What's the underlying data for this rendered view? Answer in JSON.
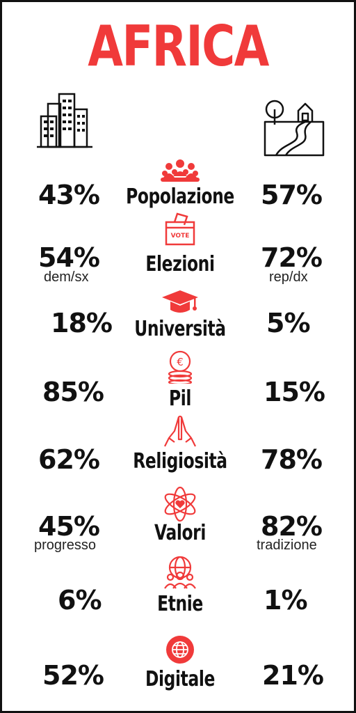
{
  "title": "AFRICA",
  "colors": {
    "accent": "#f03a3a",
    "text": "#111111"
  },
  "left_icon": "city-buildings-icon",
  "right_icon": "countryside-road-icon",
  "rows": [
    {
      "icon": "crowd-icon",
      "label": "Popolazione",
      "left": "43%",
      "right": "57%"
    },
    {
      "icon": "ballot-box-icon",
      "label": "Elezioni",
      "left": "54%",
      "right": "72%",
      "left_sub": "dem/sx",
      "right_sub": "rep/dx"
    },
    {
      "icon": "graduation-cap-icon",
      "label": "Università",
      "left": "18%",
      "right": "5%"
    },
    {
      "icon": "euro-coins-icon",
      "label": "Pil",
      "left": "85%",
      "right": "15%"
    },
    {
      "icon": "praying-hands-icon",
      "label": "Religiosità",
      "left": "62%",
      "right": "78%"
    },
    {
      "icon": "heart-atom-icon",
      "label": "Valori",
      "left": "45%",
      "right": "82%",
      "left_sub": "progresso",
      "right_sub": "tradizione"
    },
    {
      "icon": "globe-people-icon",
      "label": "Etnie",
      "left": "6%",
      "right": "1%"
    },
    {
      "icon": "globe-icon",
      "label": "Digitale",
      "left": "52%",
      "right": "21%"
    }
  ]
}
